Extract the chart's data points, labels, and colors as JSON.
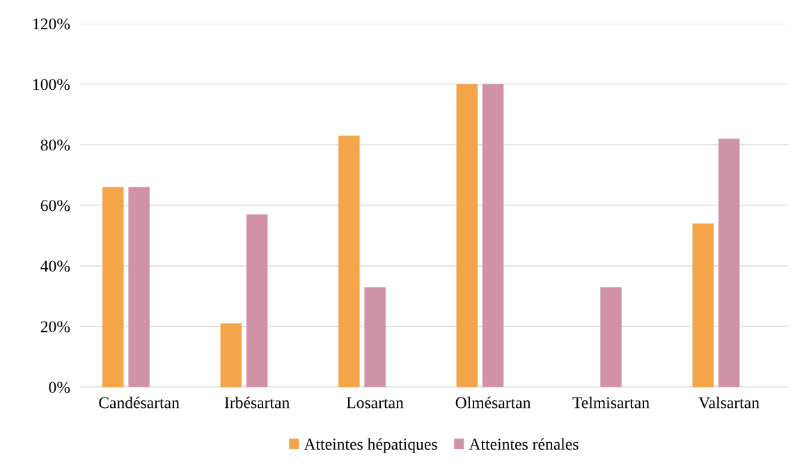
{
  "chart_data": {
    "type": "bar",
    "categories": [
      "Candésartan",
      "Irbésartan",
      "Losartan",
      "Olmésartan",
      "Telmisartan",
      "Valsartan"
    ],
    "series": [
      {
        "name": "Atteintes hépatiques",
        "color": "#f4a54a",
        "values": [
          66,
          21,
          83,
          100,
          0,
          54
        ]
      },
      {
        "name": "Atteintes rénales",
        "color": "#d092a7",
        "values": [
          66,
          57,
          33,
          100,
          33,
          82
        ]
      }
    ],
    "ylim": [
      0,
      120
    ],
    "yticks": [
      {
        "value": 0,
        "label": "0%"
      },
      {
        "value": 20,
        "label": "20%"
      },
      {
        "value": 40,
        "label": "40%"
      },
      {
        "value": 60,
        "label": "60%"
      },
      {
        "value": 80,
        "label": "80%"
      },
      {
        "value": 100,
        "label": "100%"
      },
      {
        "value": 120,
        "label": "120%"
      }
    ],
    "grid": "y",
    "legend": "bottom"
  }
}
